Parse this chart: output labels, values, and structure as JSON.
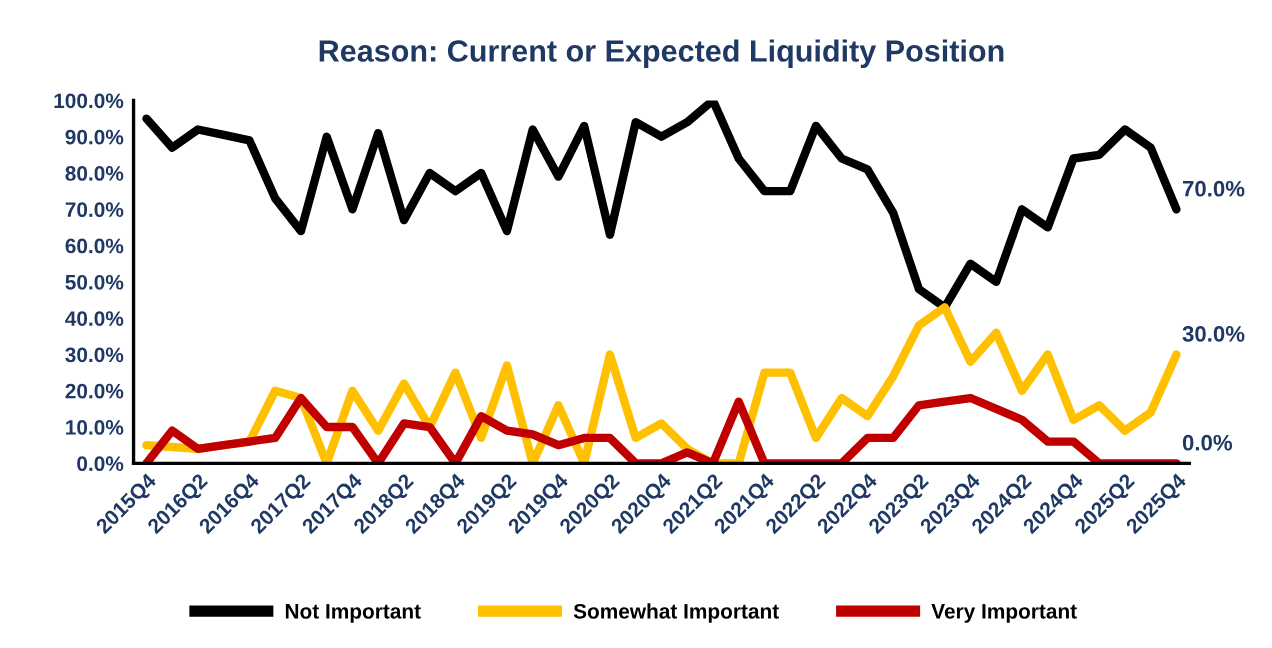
{
  "chart_data": {
    "type": "line",
    "title": "Reason: Current or Expected Liquidity Position",
    "categories": [
      "2015Q4",
      null,
      "2016Q2",
      null,
      "2016Q4",
      null,
      "2017Q2",
      null,
      "2017Q4",
      null,
      "2018Q2",
      null,
      "2018Q4",
      null,
      "2019Q2",
      null,
      "2019Q4",
      null,
      "2020Q2",
      null,
      "2020Q4",
      null,
      "2021Q2",
      null,
      "2021Q4",
      null,
      "2022Q2",
      null,
      "2022Q4",
      null,
      "2023Q2",
      null,
      "2023Q4",
      null,
      "2024Q2",
      null,
      "2024Q4",
      null,
      "2025Q2",
      null,
      "2025Q4"
    ],
    "series": [
      {
        "name": "Not Important",
        "color": "#000000",
        "values": [
          95,
          87,
          92,
          90.5,
          89,
          73,
          64,
          90,
          70,
          91,
          67,
          80,
          75,
          80,
          64,
          92,
          79,
          93,
          63,
          94,
          90,
          94,
          100,
          84,
          75,
          75,
          93,
          84,
          81,
          69,
          48,
          43,
          55,
          50,
          70,
          65,
          84,
          85,
          92,
          87,
          70
        ],
        "value_labels": [
          null,
          null,
          null,
          null,
          null,
          null,
          null,
          null,
          null,
          null,
          null,
          null,
          null,
          null,
          null,
          null,
          null,
          null,
          null,
          null,
          null,
          null,
          null,
          null,
          null,
          null,
          null,
          null,
          null,
          null,
          null,
          null,
          null,
          null,
          null,
          null,
          null,
          null,
          null,
          null,
          "70.0%"
        ]
      },
      {
        "name": "Somewhat Important",
        "color": "#ffc000",
        "values": [
          5,
          4.5,
          4,
          5,
          6,
          20,
          18,
          0,
          20,
          9,
          22,
          10,
          25,
          7,
          27,
          0,
          16,
          0,
          30,
          7,
          11,
          4,
          0,
          0,
          25,
          25,
          7,
          18,
          13,
          24,
          38,
          43,
          28,
          36,
          20,
          30,
          12,
          16,
          9,
          14,
          30
        ],
        "value_labels": [
          null,
          null,
          null,
          null,
          null,
          null,
          null,
          null,
          null,
          null,
          null,
          null,
          null,
          null,
          null,
          null,
          null,
          null,
          null,
          null,
          null,
          null,
          null,
          null,
          null,
          null,
          null,
          null,
          null,
          null,
          null,
          null,
          null,
          null,
          null,
          null,
          null,
          null,
          null,
          null,
          "30.0%"
        ]
      },
      {
        "name": "Very Important",
        "color": "#c00000",
        "values": [
          0,
          9,
          4,
          5,
          6,
          7,
          18,
          10,
          10,
          0,
          11,
          10,
          0,
          13,
          9,
          8,
          5,
          7,
          7,
          0,
          0,
          3,
          0,
          17,
          0,
          0,
          0,
          0,
          7,
          7,
          16,
          17,
          18,
          15,
          12,
          6,
          6,
          0,
          0,
          0,
          0
        ],
        "value_labels": [
          null,
          null,
          null,
          null,
          null,
          null,
          null,
          null,
          null,
          null,
          null,
          null,
          null,
          null,
          null,
          null,
          null,
          null,
          null,
          null,
          null,
          null,
          null,
          null,
          null,
          null,
          null,
          null,
          null,
          null,
          null,
          null,
          null,
          null,
          null,
          null,
          null,
          null,
          null,
          null,
          "0.0%"
        ]
      }
    ],
    "ylim": [
      0,
      100
    ],
    "yticks": [
      {
        "value": 0,
        "label": "0.0%"
      },
      {
        "value": 10,
        "label": "10.0%"
      },
      {
        "value": 20,
        "label": "20.0%"
      },
      {
        "value": 30,
        "label": "30.0%"
      },
      {
        "value": 40,
        "label": "40.0%"
      },
      {
        "value": 50,
        "label": "50.0%"
      },
      {
        "value": 60,
        "label": "60.0%"
      },
      {
        "value": 70,
        "label": "70.0%"
      },
      {
        "value": 80,
        "label": "80.0%"
      },
      {
        "value": 90,
        "label": "90.0%"
      },
      {
        "value": 100,
        "label": "100.0%"
      }
    ],
    "grid": false,
    "legend": "bottom",
    "marker": "none",
    "line_style": "solid"
  }
}
